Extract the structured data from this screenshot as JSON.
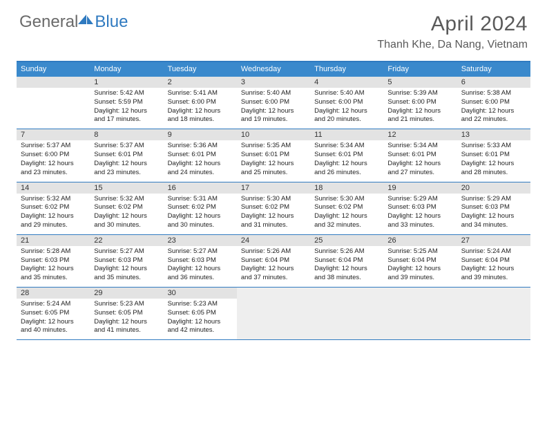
{
  "logo": {
    "general": "General",
    "blue": "Blue"
  },
  "title": "April 2024",
  "location": "Thanh Khe, Da Nang, Vietnam",
  "colors": {
    "accent": "#2f7ac0",
    "header_bg": "#3a89cc",
    "daynum_bg": "#e3e3e3",
    "tail_bg": "#eeeeee",
    "text_gray": "#5a5a5a"
  },
  "dow": [
    "Sunday",
    "Monday",
    "Tuesday",
    "Wednesday",
    "Thursday",
    "Friday",
    "Saturday"
  ],
  "weeks": [
    [
      null,
      {
        "n": "1",
        "sr": "Sunrise: 5:42 AM",
        "ss": "Sunset: 5:59 PM",
        "dl": "Daylight: 12 hours and 17 minutes."
      },
      {
        "n": "2",
        "sr": "Sunrise: 5:41 AM",
        "ss": "Sunset: 6:00 PM",
        "dl": "Daylight: 12 hours and 18 minutes."
      },
      {
        "n": "3",
        "sr": "Sunrise: 5:40 AM",
        "ss": "Sunset: 6:00 PM",
        "dl": "Daylight: 12 hours and 19 minutes."
      },
      {
        "n": "4",
        "sr": "Sunrise: 5:40 AM",
        "ss": "Sunset: 6:00 PM",
        "dl": "Daylight: 12 hours and 20 minutes."
      },
      {
        "n": "5",
        "sr": "Sunrise: 5:39 AM",
        "ss": "Sunset: 6:00 PM",
        "dl": "Daylight: 12 hours and 21 minutes."
      },
      {
        "n": "6",
        "sr": "Sunrise: 5:38 AM",
        "ss": "Sunset: 6:00 PM",
        "dl": "Daylight: 12 hours and 22 minutes."
      }
    ],
    [
      {
        "n": "7",
        "sr": "Sunrise: 5:37 AM",
        "ss": "Sunset: 6:00 PM",
        "dl": "Daylight: 12 hours and 23 minutes."
      },
      {
        "n": "8",
        "sr": "Sunrise: 5:37 AM",
        "ss": "Sunset: 6:01 PM",
        "dl": "Daylight: 12 hours and 23 minutes."
      },
      {
        "n": "9",
        "sr": "Sunrise: 5:36 AM",
        "ss": "Sunset: 6:01 PM",
        "dl": "Daylight: 12 hours and 24 minutes."
      },
      {
        "n": "10",
        "sr": "Sunrise: 5:35 AM",
        "ss": "Sunset: 6:01 PM",
        "dl": "Daylight: 12 hours and 25 minutes."
      },
      {
        "n": "11",
        "sr": "Sunrise: 5:34 AM",
        "ss": "Sunset: 6:01 PM",
        "dl": "Daylight: 12 hours and 26 minutes."
      },
      {
        "n": "12",
        "sr": "Sunrise: 5:34 AM",
        "ss": "Sunset: 6:01 PM",
        "dl": "Daylight: 12 hours and 27 minutes."
      },
      {
        "n": "13",
        "sr": "Sunrise: 5:33 AM",
        "ss": "Sunset: 6:01 PM",
        "dl": "Daylight: 12 hours and 28 minutes."
      }
    ],
    [
      {
        "n": "14",
        "sr": "Sunrise: 5:32 AM",
        "ss": "Sunset: 6:02 PM",
        "dl": "Daylight: 12 hours and 29 minutes."
      },
      {
        "n": "15",
        "sr": "Sunrise: 5:32 AM",
        "ss": "Sunset: 6:02 PM",
        "dl": "Daylight: 12 hours and 30 minutes."
      },
      {
        "n": "16",
        "sr": "Sunrise: 5:31 AM",
        "ss": "Sunset: 6:02 PM",
        "dl": "Daylight: 12 hours and 30 minutes."
      },
      {
        "n": "17",
        "sr": "Sunrise: 5:30 AM",
        "ss": "Sunset: 6:02 PM",
        "dl": "Daylight: 12 hours and 31 minutes."
      },
      {
        "n": "18",
        "sr": "Sunrise: 5:30 AM",
        "ss": "Sunset: 6:02 PM",
        "dl": "Daylight: 12 hours and 32 minutes."
      },
      {
        "n": "19",
        "sr": "Sunrise: 5:29 AM",
        "ss": "Sunset: 6:03 PM",
        "dl": "Daylight: 12 hours and 33 minutes."
      },
      {
        "n": "20",
        "sr": "Sunrise: 5:29 AM",
        "ss": "Sunset: 6:03 PM",
        "dl": "Daylight: 12 hours and 34 minutes."
      }
    ],
    [
      {
        "n": "21",
        "sr": "Sunrise: 5:28 AM",
        "ss": "Sunset: 6:03 PM",
        "dl": "Daylight: 12 hours and 35 minutes."
      },
      {
        "n": "22",
        "sr": "Sunrise: 5:27 AM",
        "ss": "Sunset: 6:03 PM",
        "dl": "Daylight: 12 hours and 35 minutes."
      },
      {
        "n": "23",
        "sr": "Sunrise: 5:27 AM",
        "ss": "Sunset: 6:03 PM",
        "dl": "Daylight: 12 hours and 36 minutes."
      },
      {
        "n": "24",
        "sr": "Sunrise: 5:26 AM",
        "ss": "Sunset: 6:04 PM",
        "dl": "Daylight: 12 hours and 37 minutes."
      },
      {
        "n": "25",
        "sr": "Sunrise: 5:26 AM",
        "ss": "Sunset: 6:04 PM",
        "dl": "Daylight: 12 hours and 38 minutes."
      },
      {
        "n": "26",
        "sr": "Sunrise: 5:25 AM",
        "ss": "Sunset: 6:04 PM",
        "dl": "Daylight: 12 hours and 39 minutes."
      },
      {
        "n": "27",
        "sr": "Sunrise: 5:24 AM",
        "ss": "Sunset: 6:04 PM",
        "dl": "Daylight: 12 hours and 39 minutes."
      }
    ],
    [
      {
        "n": "28",
        "sr": "Sunrise: 5:24 AM",
        "ss": "Sunset: 6:05 PM",
        "dl": "Daylight: 12 hours and 40 minutes."
      },
      {
        "n": "29",
        "sr": "Sunrise: 5:23 AM",
        "ss": "Sunset: 6:05 PM",
        "dl": "Daylight: 12 hours and 41 minutes."
      },
      {
        "n": "30",
        "sr": "Sunrise: 5:23 AM",
        "ss": "Sunset: 6:05 PM",
        "dl": "Daylight: 12 hours and 42 minutes."
      },
      {
        "tail": true
      },
      {
        "tail": true
      },
      {
        "tail": true
      },
      {
        "tail": true
      }
    ]
  ]
}
